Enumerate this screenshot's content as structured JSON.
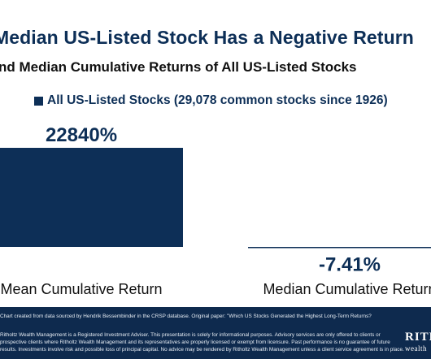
{
  "title": "Median US-Listed Stock Has a Negative Return",
  "subtitle": "nd Median Cumulative Returns of All US-Listed Stocks",
  "chart_data": {
    "type": "bar",
    "categories": [
      "Mean Cumulative Return",
      "Median Cumulative Return"
    ],
    "series": [
      {
        "name": "All US-Listed Stocks (29,078 common stocks since 1926)",
        "values": [
          22840,
          -7.41
        ]
      }
    ],
    "data_labels": [
      "22840%",
      "-7.41%"
    ],
    "ylim": [
      -8,
      30000
    ],
    "grid": false,
    "legend": "top-left",
    "bar_color": "#0d2f57"
  },
  "footer": {
    "source": "Chart created from data sourced by Hendrik Bessembinder in the CRSP database. Original paper: \"Which US Stocks Generated the Highest Long-Term Returns?",
    "line1": "Ritholtz Wealth Management is a Registered Investment Adviser. This presentation is solely for informational purposes. Advisory services are only offered to clients or",
    "line2": "prospective clients where Ritholtz Wealth Management and its representatives are properly licensed or exempt from licensure. Past performance is no guarantee of future",
    "line3": "results. Investments involve risk and possible loss of principal capital. No advice may be rendered by Ritholtz Wealth Management unless a client service agreement is in place.",
    "logo": "RITH",
    "logo_sub": "wealth"
  },
  "colors": {
    "navy": "#0d2f57",
    "footer_bg": "#0e2a4e"
  }
}
